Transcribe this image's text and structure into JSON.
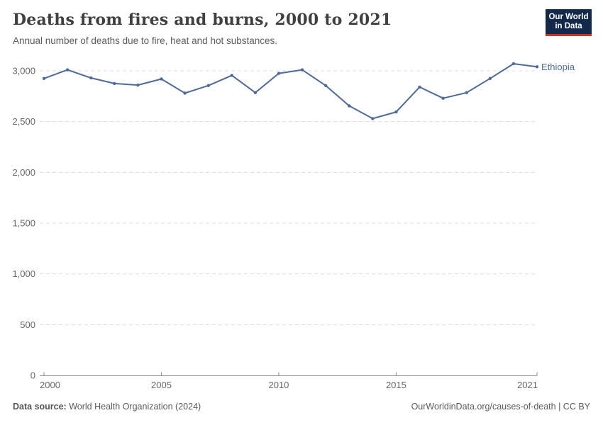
{
  "header": {
    "title": "Deaths from fires and burns, 2000 to 2021",
    "subtitle": "Annual number of deaths due to fire, heat and hot substances."
  },
  "logo": {
    "line1": "Our World",
    "line2": "in Data",
    "bg_color": "#12294B",
    "stripe_color": "#D0331F",
    "text_color": "#FFFFFF"
  },
  "chart_data": {
    "type": "line",
    "title": "Deaths from fires and burns, 2000 to 2021",
    "xlabel": "",
    "ylabel": "",
    "x": [
      2000,
      2001,
      2002,
      2003,
      2004,
      2005,
      2006,
      2007,
      2008,
      2009,
      2010,
      2011,
      2012,
      2013,
      2014,
      2015,
      2016,
      2017,
      2018,
      2019,
      2020,
      2021
    ],
    "series": [
      {
        "name": "Ethiopia",
        "color": "#4C6A9C",
        "values": [
          2925,
          3010,
          2930,
          2875,
          2860,
          2920,
          2780,
          2855,
          2955,
          2785,
          2975,
          3010,
          2855,
          2655,
          2530,
          2595,
          2840,
          2730,
          2785,
          2925,
          3070,
          3040
        ]
      }
    ],
    "xlim": [
      2000,
      2021
    ],
    "ylim": [
      0,
      3100
    ],
    "xticks": [
      2000,
      2005,
      2010,
      2015,
      2021
    ],
    "yticks": [
      0,
      500,
      1000,
      1500,
      2000,
      2500,
      3000
    ],
    "grid": "horizontal-dashed",
    "legend": "end-of-line-label",
    "colors": {
      "grid": "#dcdcdc",
      "axis": "#8f8f8f",
      "tick_text": "#666666"
    }
  },
  "footer": {
    "datasource_label": "Data source:",
    "datasource_value": " World Health Organization (2024)",
    "credit": "OurWorldinData.org/causes-of-death | CC BY"
  }
}
